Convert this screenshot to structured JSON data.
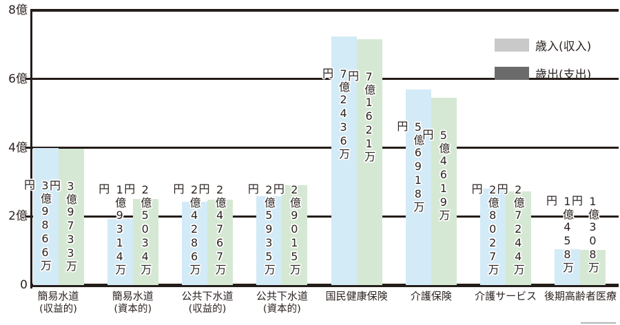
{
  "page": {
    "background": "#ffffff"
  },
  "legend": {
    "items": [
      {
        "label": "歳入(収入)",
        "swatch_color": "#c9c9c9"
      },
      {
        "label": "歳出(支出)",
        "swatch_color": "#6b6b6b"
      }
    ]
  },
  "colors": {
    "revenue_bar": "#d3eaf7",
    "expenditure_bar": "#d5e8d3",
    "axis_line": "#241c18",
    "text": "#2b2320",
    "label_outline": "#ffffff"
  },
  "chart_data": {
    "type": "bar",
    "unit": "万円",
    "title": "",
    "xlabel": "",
    "ylabel": "",
    "grid": "horizontal",
    "legend_position": "top-right",
    "y_axis": {
      "ticks": [
        "8億",
        "6億",
        "4億",
        "2億",
        "0"
      ],
      "min_oku": 0,
      "max_oku": 8
    },
    "categories": [
      {
        "lines": [
          "簡易水道",
          "(収益的)"
        ]
      },
      {
        "lines": [
          "簡易水道",
          "(資本的)"
        ]
      },
      {
        "lines": [
          "公共下水道",
          "(収益的)"
        ]
      },
      {
        "lines": [
          "公共下水道",
          "(資本的)"
        ]
      },
      {
        "lines": [
          "国民健康保険"
        ]
      },
      {
        "lines": [
          "介護保険"
        ]
      },
      {
        "lines": [
          "介護サービス"
        ]
      },
      {
        "lines": [
          "後期高齢者医療"
        ]
      }
    ],
    "series": [
      {
        "name": "歳入(収入)",
        "key": "revenue",
        "values_man_yen": [
          39866,
          19314,
          24286,
          25935,
          72436,
          56918,
          28027,
          10458
        ],
        "bar_labels": [
          "3億9866万円",
          "1億9314万円",
          "2億4286万円",
          "2億5935万円",
          "7億2436万円",
          "5億6918万円",
          "2億8027万円",
          "1億458万円"
        ]
      },
      {
        "name": "歳出(支出)",
        "key": "expenditure",
        "values_man_yen": [
          39733,
          25034,
          24767,
          29015,
          71621,
          54619,
          27244,
          10308
        ],
        "bar_labels": [
          "3億9733万円",
          "2億5034万円",
          "2億4767万円",
          "2億9015万円",
          "7億1621万円",
          "5億4619万円",
          "2億7244万円",
          "1億308万円"
        ]
      }
    ]
  }
}
